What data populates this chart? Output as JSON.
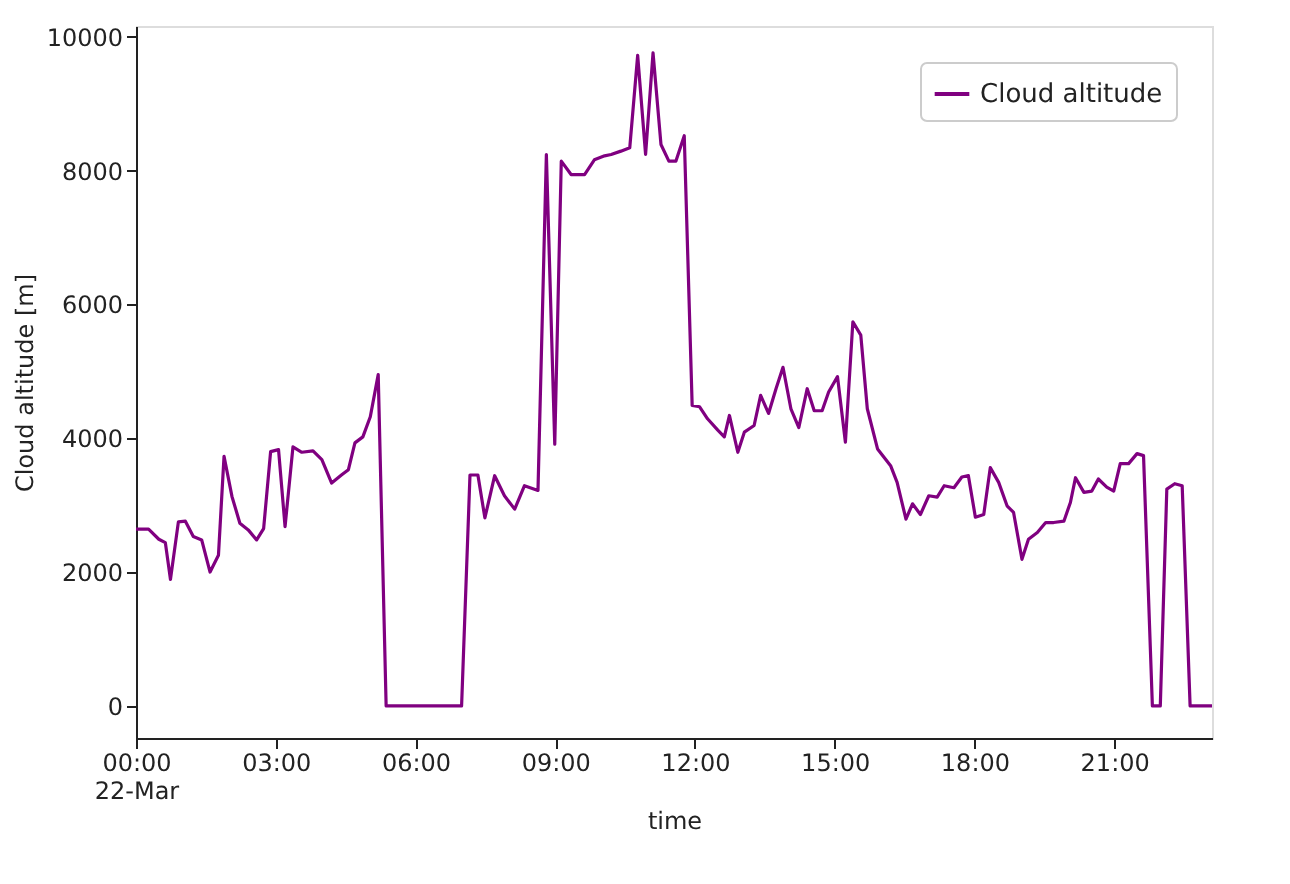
{
  "chart_data": {
    "type": "line",
    "xlabel": "time",
    "ylabel": "Cloud altitude [m]",
    "xlim": [
      0,
      23.1
    ],
    "ylim": [
      -480,
      10160
    ],
    "xticks": [
      {
        "value": 0,
        "label": "00:00\n22-Mar"
      },
      {
        "value": 3,
        "label": "03:00"
      },
      {
        "value": 6,
        "label": "06:00"
      },
      {
        "value": 9,
        "label": "09:00"
      },
      {
        "value": 12,
        "label": "12:00"
      },
      {
        "value": 15,
        "label": "15:00"
      },
      {
        "value": 18,
        "label": "18:00"
      },
      {
        "value": 21,
        "label": "21:00"
      }
    ],
    "yticks": [
      0,
      2000,
      4000,
      6000,
      8000,
      10000
    ],
    "grid": false,
    "legend": "top right",
    "series": [
      {
        "name": "Cloud altitude",
        "color": "#800080",
        "x": [
          0,
          0.27,
          0.49,
          0.63,
          0.74,
          0.91,
          1.06,
          1.23,
          1.41,
          1.59,
          1.77,
          1.89,
          2.06,
          2.23,
          2.41,
          2.59,
          2.74,
          2.89,
          3.06,
          3.2,
          3.37,
          3.56,
          3.8,
          3.99,
          4.2,
          4.41,
          4.56,
          4.7,
          4.87,
          5.03,
          5.2,
          5.37,
          6.99,
          7.17,
          7.34,
          7.49,
          7.7,
          7.91,
          8.13,
          8.34,
          8.63,
          8.81,
          8.99,
          9.13,
          9.34,
          9.63,
          9.84,
          10.06,
          10.2,
          10.41,
          10.6,
          10.77,
          10.94,
          11.1,
          11.27,
          11.44,
          11.59,
          11.77,
          11.94,
          12.1,
          12.27,
          12.49,
          12.63,
          12.74,
          12.92,
          13.06,
          13.27,
          13.41,
          13.58,
          13.74,
          13.89,
          14.06,
          14.23,
          14.41,
          14.56,
          14.73,
          14.87,
          15.06,
          15.23,
          15.39,
          15.56,
          15.7,
          15.92,
          16.2,
          16.34,
          16.53,
          16.67,
          16.84,
          17.02,
          17.2,
          17.35,
          17.56,
          17.73,
          17.87,
          18.02,
          18.2,
          18.34,
          18.52,
          18.7,
          18.84,
          19.02,
          19.16,
          19.35,
          19.53,
          19.7,
          19.92,
          20.06,
          20.17,
          20.35,
          20.52,
          20.66,
          20.84,
          20.99,
          21.13,
          21.31,
          21.49,
          21.63,
          21.82,
          21.99,
          22.13,
          22.3,
          22.46,
          22.63,
          23.1
        ],
        "values": [
          2640,
          2640,
          2490,
          2440,
          1890,
          2750,
          2760,
          2530,
          2480,
          2000,
          2250,
          3730,
          3130,
          2730,
          2630,
          2480,
          2650,
          3800,
          3830,
          2680,
          3870,
          3790,
          3810,
          3680,
          3330,
          3450,
          3530,
          3930,
          4020,
          4320,
          4950,
          0,
          0,
          3450,
          3450,
          2810,
          3440,
          3140,
          2940,
          3290,
          3220,
          8240,
          3910,
          8140,
          7940,
          7940,
          8160,
          8220,
          8240,
          8290,
          8340,
          9720,
          8240,
          9760,
          8390,
          8140,
          8140,
          8520,
          4490,
          4470,
          4290,
          4120,
          4020,
          4340,
          3790,
          4090,
          4190,
          4640,
          4370,
          4740,
          5060,
          4440,
          4160,
          4740,
          4410,
          4410,
          4690,
          4920,
          3940,
          5740,
          5540,
          4440,
          3840,
          3590,
          3340,
          2790,
          3020,
          2860,
          3140,
          3120,
          3290,
          3260,
          3420,
          3440,
          2820,
          2860,
          3560,
          3340,
          2990,
          2890,
          2190,
          2490,
          2590,
          2740,
          2740,
          2760,
          3040,
          3410,
          3190,
          3210,
          3390,
          3270,
          3210,
          3620,
          3620,
          3770,
          3740,
          0,
          0,
          3240,
          3320,
          3290,
          0,
          0
        ]
      }
    ]
  }
}
